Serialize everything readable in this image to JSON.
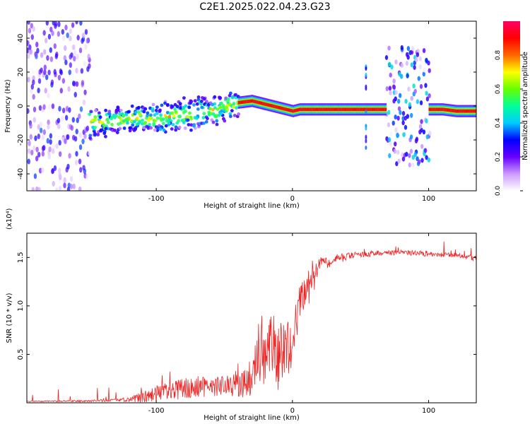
{
  "figure": {
    "title": "C2E1.2025.022.04.23.G23"
  },
  "chart_data": [
    {
      "type": "heatmap",
      "title": "C2E1.2025.022.04.23.G23",
      "xlabel": "Height of straight line (km)",
      "ylabel": "Frequency (Hz)",
      "xlim": [
        -195,
        135
      ],
      "ylim": [
        -50,
        50
      ],
      "xticks": [
        -100,
        0,
        100
      ],
      "yticks": [
        -40,
        -20,
        0,
        20,
        40
      ],
      "colorbar": {
        "label": "Normalized spectral amplitude",
        "range": [
          0,
          1
        ],
        "ticks": [
          "0.0",
          "0.2",
          "0.4",
          "0.6",
          "0.8"
        ],
        "colors": [
          "#ffffff",
          "#cc99ff",
          "#6600ff",
          "#0000ff",
          "#00ccff",
          "#00ff99",
          "#66ff00",
          "#ffff00",
          "#ff6600",
          "#ff0000",
          "#ff0066"
        ]
      },
      "ridge": {
        "x": [
          -150,
          -120,
          -100,
          -80,
          -60,
          -40,
          -30,
          -20,
          -10,
          0,
          5,
          20,
          50,
          60,
          70,
          80,
          90,
          100,
          110,
          120,
          135
        ],
        "y": [
          -10,
          -8,
          -7,
          -5,
          -3,
          2,
          3,
          1,
          -1,
          -3,
          -2,
          -2,
          -2,
          -2,
          -2,
          -3,
          -3,
          -2,
          -2,
          -3,
          -3
        ]
      },
      "regions": [
        {
          "name": "noise",
          "x": [
            -195,
            -130
          ],
          "level": 0.25
        },
        {
          "name": "scattered",
          "x": [
            -150,
            -40
          ],
          "level": 0.5
        },
        {
          "name": "coherent",
          "x": [
            -40,
            68
          ],
          "level": 0.95
        },
        {
          "name": "burst",
          "x": [
            68,
            100
          ],
          "level": 0.3
        },
        {
          "name": "coherent",
          "x": [
            100,
            135
          ],
          "level": 0.95
        }
      ],
      "colors": {
        "plot_background": "#ffffff"
      }
    },
    {
      "type": "line",
      "xlabel": "Height of straight line (km)",
      "ylabel": "SNR (10 * v/v)",
      "multiplier": "(x10⁴)",
      "xlim": [
        -195,
        135
      ],
      "ylim": [
        0,
        1.75
      ],
      "xticks": [
        -100,
        0,
        100
      ],
      "yticks": [
        0.5,
        1.0,
        1.5
      ],
      "series": [
        {
          "color": "#ee2222",
          "envelope_x": [
            -195,
            -150,
            -130,
            -120,
            -110,
            -100,
            -90,
            -80,
            -70,
            -60,
            -50,
            -40,
            -30,
            -25,
            -20,
            -15,
            -10,
            -5,
            0,
            5,
            10,
            15,
            20,
            30,
            40,
            50,
            60,
            70,
            80,
            90,
            100,
            110,
            120,
            135
          ],
          "envelope_y": [
            0.02,
            0.03,
            0.04,
            0.06,
            0.12,
            0.18,
            0.22,
            0.26,
            0.28,
            0.25,
            0.3,
            0.3,
            0.45,
            0.7,
            0.9,
            0.95,
            0.8,
            0.9,
            0.9,
            1.2,
            1.35,
            1.4,
            1.5,
            1.53,
            1.55,
            1.56,
            1.57,
            1.57,
            1.58,
            1.57,
            1.57,
            1.55,
            1.55,
            1.52
          ],
          "noise_y": [
            0.01,
            0.02,
            0.03,
            0.05,
            0.12,
            0.18,
            0.2,
            0.22,
            0.22,
            0.2,
            0.22,
            0.25,
            0.4,
            0.6,
            0.7,
            0.65,
            0.7,
            0.6,
            0.6,
            0.4,
            0.4,
            0.3,
            0.15,
            0.12,
            0.08,
            0.06,
            0.06,
            0.05,
            0.05,
            0.06,
            0.06,
            0.05,
            0.05,
            0.06
          ]
        }
      ]
    }
  ]
}
